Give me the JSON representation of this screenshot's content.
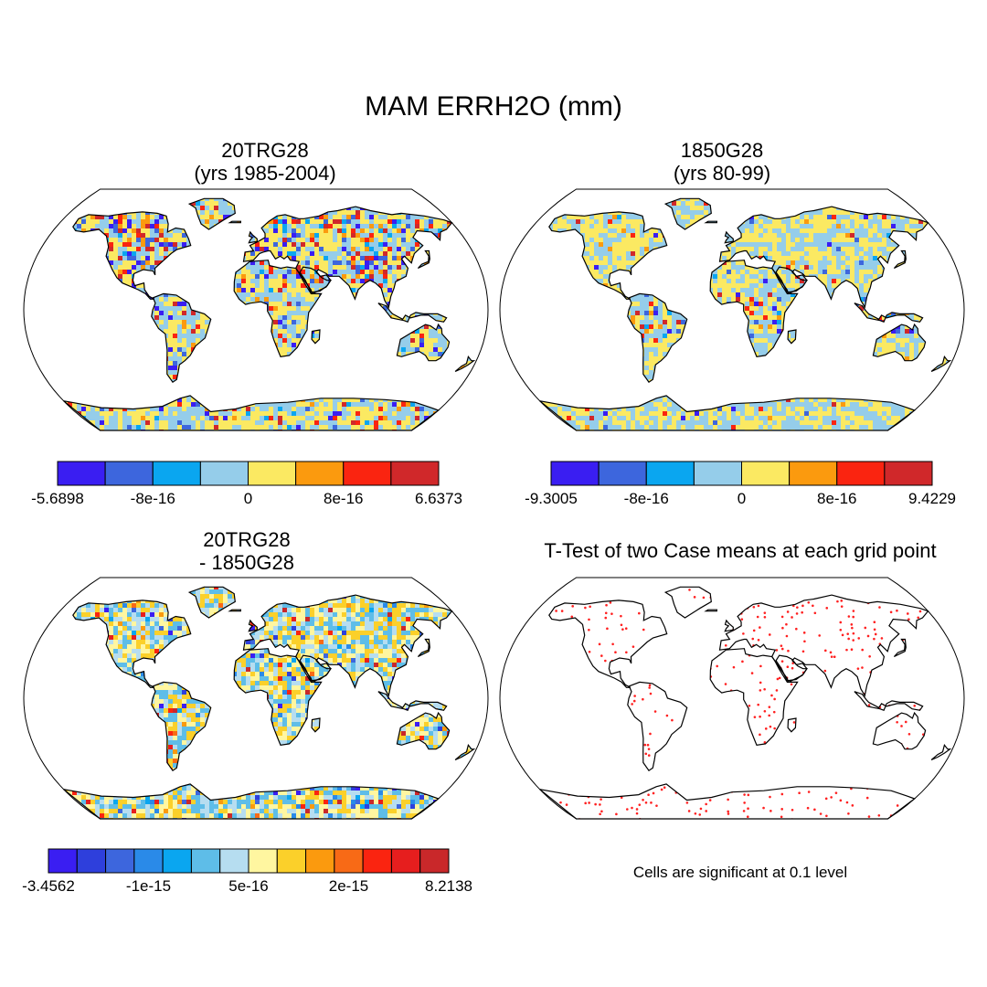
{
  "main_title": "MAM ERRH2O (mm)",
  "panels": [
    {
      "title_line1": "20TRG28",
      "title_line2": "(yrs 1985-2004)"
    },
    {
      "title_line1": "1850G28",
      "title_line2": "(yrs 80-99)"
    },
    {
      "title_line1": "20TRG28",
      "title_line2": "- 1850G28"
    },
    {
      "title_line1": "T-Test of two Case means at each grid point",
      "title_line2": ""
    }
  ],
  "note": "Cells are significant at 0.1 level",
  "chart_data": [
    {
      "type": "heatmap",
      "title": "20TRG28 (yrs 1985-2004)",
      "projection": "Robinson (global land)",
      "colorbar": {
        "colors": [
          "#3a1ef2",
          "#3d66dd",
          "#0aa6f0",
          "#95cdea",
          "#fbe962",
          "#fb9a0e",
          "#fa2410",
          "#d0282a"
        ],
        "tick_labels": [
          "-5.6898",
          "-8e-16",
          "0",
          "8e-16",
          "6.6373"
        ]
      }
    },
    {
      "type": "heatmap",
      "title": "1850G28 (yrs 80-99)",
      "projection": "Robinson (global land)",
      "colorbar": {
        "colors": [
          "#3a1ef2",
          "#3d66dd",
          "#0aa6f0",
          "#95cdea",
          "#fbe962",
          "#fb9a0e",
          "#fa2410",
          "#d0282a"
        ],
        "tick_labels": [
          "-9.3005",
          "-8e-16",
          "0",
          "8e-16",
          "9.4229"
        ]
      }
    },
    {
      "type": "heatmap",
      "title": "20TRG28 - 1850G28",
      "projection": "Robinson (global land)",
      "colorbar": {
        "colors": [
          "#3a1ef2",
          "#2e3fdc",
          "#3d66dd",
          "#2a8ae8",
          "#0aa6f0",
          "#5ebde8",
          "#b6ddf0",
          "#fff6a0",
          "#fbd02a",
          "#fb9a0e",
          "#f86a16",
          "#fa2410",
          "#e61e1e",
          "#c9282a"
        ],
        "tick_labels": [
          "-3.4562",
          "-1e-15",
          "5e-16",
          "2e-15",
          "8.2138"
        ]
      }
    },
    {
      "type": "scatter",
      "title": "T-Test of two Case means at each grid point",
      "description_shown": "Cells are significant at 0.1 level",
      "marker_color": "#ff2020"
    }
  ]
}
